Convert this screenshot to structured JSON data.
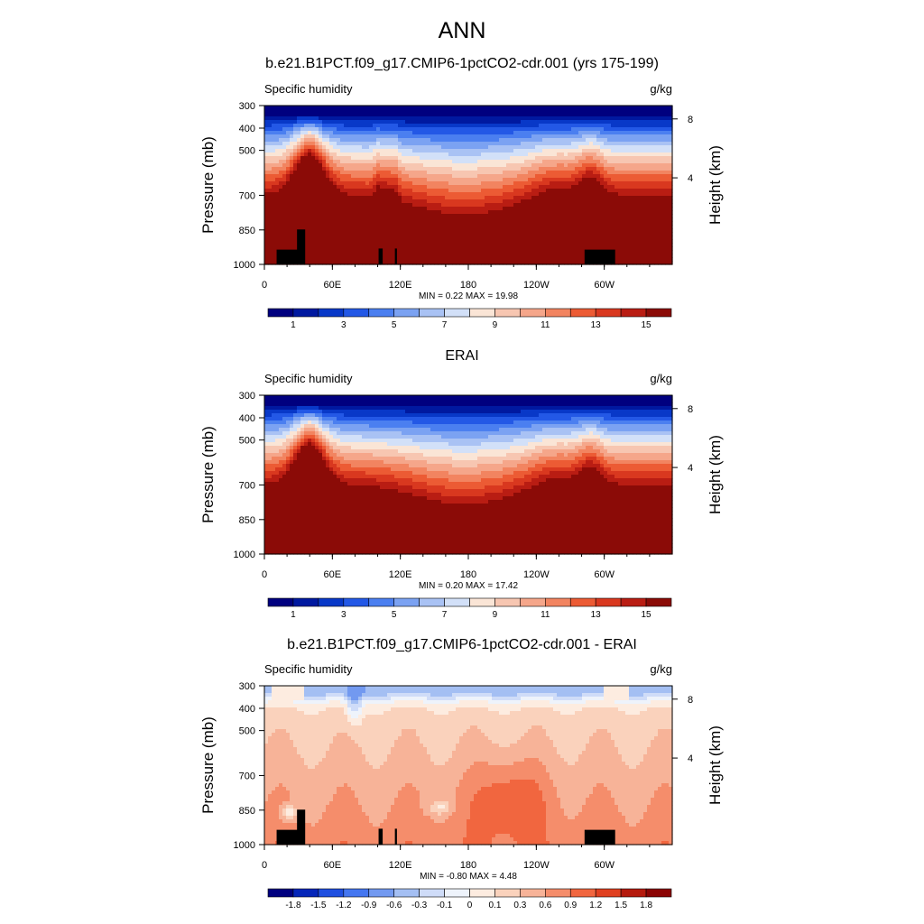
{
  "title": "ANN",
  "colors": {
    "abs_palette": [
      "#00007f",
      "#0019a0",
      "#0838c8",
      "#2358e6",
      "#4b7ff0",
      "#7ba2f2",
      "#a9c2f4",
      "#d2e0f8",
      "#fae5d6",
      "#f7c6b1",
      "#f5a68a",
      "#f28460",
      "#ec5b34",
      "#d9381f",
      "#b91d13",
      "#8b0b07"
    ],
    "diff_palette": [
      "#00007f",
      "#0526b9",
      "#1f4fe0",
      "#4476f0",
      "#7299f0",
      "#a4bff3",
      "#cfdcf8",
      "#eef3fb",
      "#fdece0",
      "#fad2bc",
      "#f7b398",
      "#f58d6b",
      "#f1663f",
      "#e04020",
      "#b51a0d",
      "#8b0404"
    ]
  },
  "chart_data": [
    {
      "type": "heatmap",
      "panel_title": "b.e21.B1PCT.f09_g17.CMIP6-1pctCO2-cdr.001 (yrs 175-199)",
      "left_label": "Specific humidity",
      "right_label": "g/kg",
      "ylabel": "Pressure (mb)",
      "y2label": "Height (km)",
      "y_ticks": [
        "300",
        "400",
        "500",
        "700",
        "850",
        "1000"
      ],
      "y2_ticks": [
        "8",
        "4"
      ],
      "x_ticks": [
        "0",
        "60E",
        "120E",
        "180",
        "120W",
        "60W"
      ],
      "stats": "MIN =   0.22  MAX =  19.98",
      "colorbar_labels": [
        "1",
        "3",
        "5",
        "7",
        "9",
        "11",
        "13",
        "15"
      ],
      "min": 0.22,
      "max": 19.98
    },
    {
      "type": "heatmap",
      "panel_title": "ERAI",
      "left_label": "Specific humidity",
      "right_label": "g/kg",
      "ylabel": "Pressure (mb)",
      "y2label": "Height (km)",
      "y_ticks": [
        "300",
        "400",
        "500",
        "700",
        "850",
        "1000"
      ],
      "y2_ticks": [
        "8",
        "4"
      ],
      "x_ticks": [
        "0",
        "60E",
        "120E",
        "180",
        "120W",
        "60W"
      ],
      "stats": "MIN =   0.20  MAX =  17.42",
      "colorbar_labels": [
        "1",
        "3",
        "5",
        "7",
        "9",
        "11",
        "13",
        "15"
      ],
      "min": 0.2,
      "max": 17.42
    },
    {
      "type": "heatmap",
      "panel_title": "b.e21.B1PCT.f09_g17.CMIP6-1pctCO2-cdr.001 - ERAI",
      "left_label": "Specific humidity",
      "right_label": "g/kg",
      "ylabel": "Pressure (mb)",
      "y2label": "Height (km)",
      "y_ticks": [
        "300",
        "400",
        "500",
        "700",
        "850",
        "1000"
      ],
      "y2_ticks": [
        "8",
        "4"
      ],
      "x_ticks": [
        "0",
        "60E",
        "120E",
        "180",
        "120W",
        "60W"
      ],
      "stats": "MIN =  -0.80  MAX =   4.48",
      "colorbar_labels": [
        "-1.8",
        "-1.5",
        "-1.2",
        "-0.9",
        "-0.6",
        "-0.3",
        "-0.1",
        "0",
        "0.1",
        "0.3",
        "0.6",
        "0.9",
        "1.2",
        "1.5",
        "1.8"
      ],
      "min": -0.8,
      "max": 4.48
    }
  ]
}
